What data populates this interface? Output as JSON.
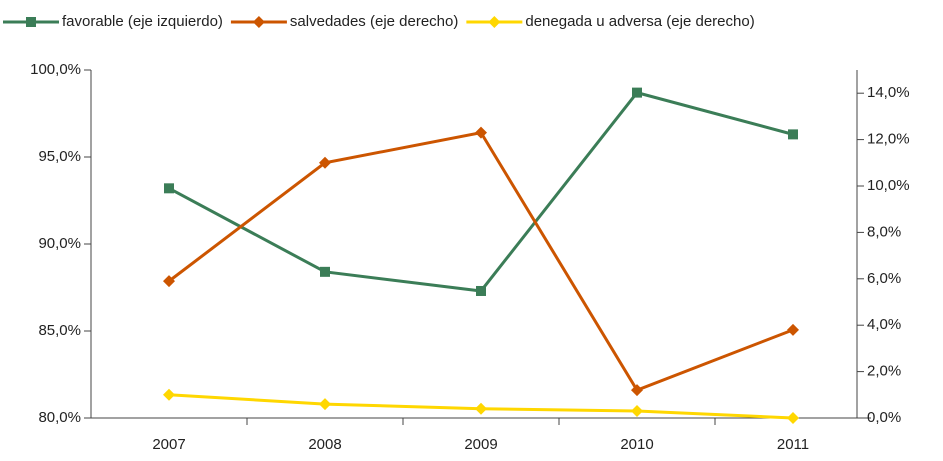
{
  "chart_data": {
    "type": "line",
    "categories": [
      "2007",
      "2008",
      "2009",
      "2010",
      "2011"
    ],
    "series": [
      {
        "name": "favorable (eje izquierdo)",
        "color": "#3b7d57",
        "marker": "square",
        "axis": "y",
        "values": [
          93.2,
          88.4,
          87.3,
          98.7,
          96.3
        ]
      },
      {
        "name": "salvedades (eje derecho)",
        "color": "#cc5500",
        "marker": "diamond",
        "axis": "y2",
        "values": [
          5.9,
          11.0,
          12.3,
          1.2,
          3.8
        ]
      },
      {
        "name": "denegada u adversa (eje derecho)",
        "color": "#ffd700",
        "marker": "diamond",
        "axis": "y2",
        "values": [
          1.0,
          0.6,
          0.4,
          0.3,
          0
        ]
      }
    ],
    "ylim": [
      80,
      100
    ],
    "yticks": [
      {
        "value": 80,
        "label": "80,0%"
      },
      {
        "value": 85,
        "label": "85,0%"
      },
      {
        "value": 90,
        "label": "90,0%"
      },
      {
        "value": 95,
        "label": "95,0%"
      },
      {
        "value": 100,
        "label": "100,0%"
      }
    ],
    "y2lim": [
      0,
      15
    ],
    "y2ticks": [
      {
        "value": 0,
        "label": "0,0%"
      },
      {
        "value": 2,
        "label": "2,0%"
      },
      {
        "value": 4,
        "label": "4,0%"
      },
      {
        "value": 6,
        "label": "6,0%"
      },
      {
        "value": 8,
        "label": "8,0%"
      },
      {
        "value": 10,
        "label": "10,0%"
      },
      {
        "value": 12,
        "label": "12,0%"
      },
      {
        "value": 14,
        "label": "14,0%"
      }
    ],
    "grid": false,
    "legend": "top"
  }
}
